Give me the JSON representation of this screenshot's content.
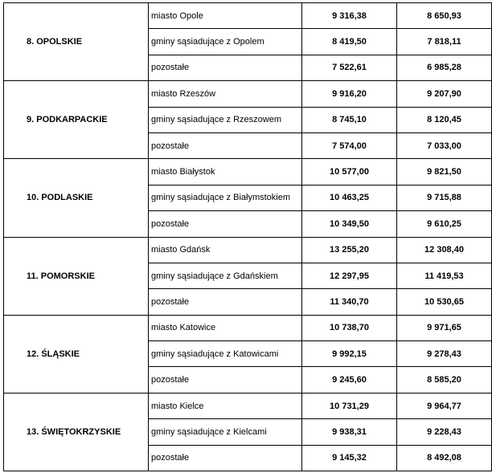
{
  "regions": [
    {
      "name": "8. OPOLSKIE",
      "rows": [
        {
          "area": "miasto Opole",
          "v1": "9 316,38",
          "v2": "8 650,93"
        },
        {
          "area": "gminy sąsiadujące z Opolem",
          "v1": "8 419,50",
          "v2": "7 818,11"
        },
        {
          "area": "pozostałe",
          "v1": "7 522,61",
          "v2": "6 985,28"
        }
      ]
    },
    {
      "name": "9. PODKARPACKIE",
      "rows": [
        {
          "area": "miasto Rzeszów",
          "v1": "9 916,20",
          "v2": "9 207,90"
        },
        {
          "area": "gminy sąsiadujące z Rzeszowem",
          "v1": "8 745,10",
          "v2": "8 120,45"
        },
        {
          "area": "pozostałe",
          "v1": "7 574,00",
          "v2": "7 033,00"
        }
      ]
    },
    {
      "name": "10. PODLASKIE",
      "rows": [
        {
          "area": "miasto Białystok",
          "v1": "10 577,00",
          "v2": "9 821,50"
        },
        {
          "area": "gminy sąsiadujące z Białymstokiem",
          "v1": "10 463,25",
          "v2": "9 715,88"
        },
        {
          "area": "pozostałe",
          "v1": "10 349,50",
          "v2": "9 610,25"
        }
      ]
    },
    {
      "name": "11. POMORSKIE",
      "rows": [
        {
          "area": "miasto Gdańsk",
          "v1": "13 255,20",
          "v2": "12 308,40"
        },
        {
          "area": "gminy sąsiadujące z Gdańskiem",
          "v1": "12 297,95",
          "v2": "11 419,53"
        },
        {
          "area": "pozostałe",
          "v1": "11 340,70",
          "v2": "10 530,65"
        }
      ]
    },
    {
      "name": "12. ŚLĄSKIE",
      "rows": [
        {
          "area": "miasto Katowice",
          "v1": "10 738,70",
          "v2": "9 971,65"
        },
        {
          "area": "gminy sąsiadujące z Katowicami",
          "v1": "9 992,15",
          "v2": "9 278,43"
        },
        {
          "area": "pozostałe",
          "v1": "9 245,60",
          "v2": "8 585,20"
        }
      ]
    },
    {
      "name": "13. ŚWIĘTOKRZYSKIE",
      "rows": [
        {
          "area": "miasto Kielce",
          "v1": "10 731,29",
          "v2": "9 964,77"
        },
        {
          "area": "gminy sąsiadujące z Kielcami",
          "v1": "9 938,31",
          "v2": "9 228,43"
        },
        {
          "area": "pozostałe",
          "v1": "9 145,32",
          "v2": "8 492,08"
        }
      ]
    }
  ]
}
